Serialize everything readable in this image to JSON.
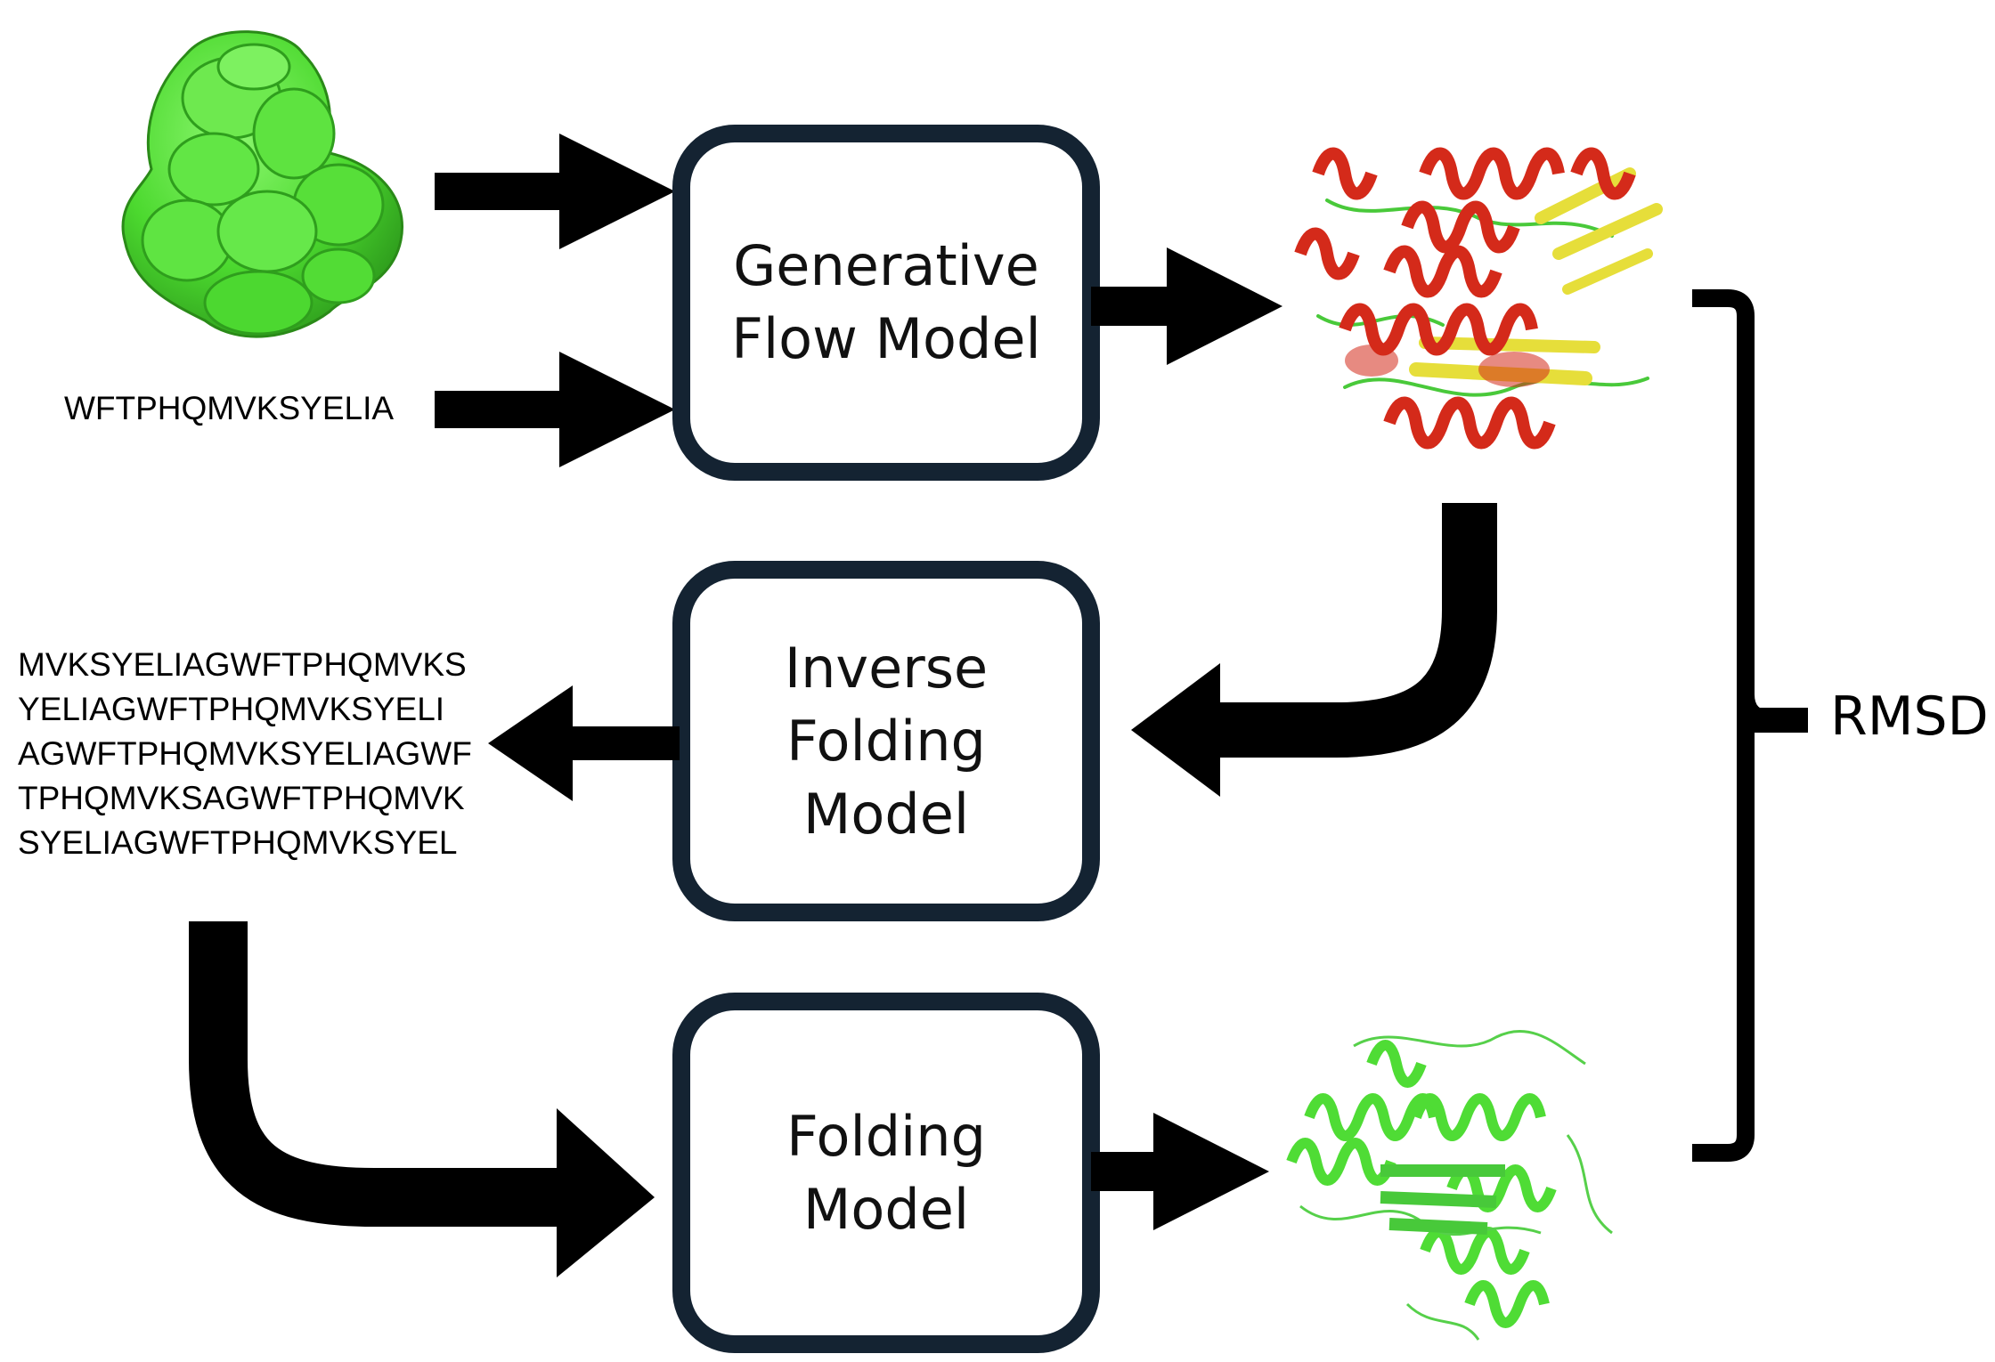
{
  "input_sequence": "WFTPHQMVKSYELIA",
  "boxes": {
    "generative": {
      "label": "Generative\nFlow Model"
    },
    "inverse": {
      "label": "Inverse\nFolding\nModel"
    },
    "folding": {
      "label": "Folding\nModel"
    }
  },
  "designed_sequence": {
    "lines": [
      "MVKSYELIAGWFTPHQMVKS",
      "YELIAGWFTPHQMVKSYELI",
      "AGWFTPHQMVKSYELIAGWF",
      "TPHQMVKSAGWFTPHQMVK",
      "SYELIAGWFTPHQMVKSYEL"
    ]
  },
  "rmsd_label": "RMSD",
  "colors": {
    "box_border": "#142332",
    "arrow": "#000000",
    "binder_surface": "#55e03a",
    "helix_red": "#d42a1a",
    "strand_yellow": "#e6de3a",
    "predicted_green": "#4fdc35"
  },
  "icons": {
    "target_surface": "protein-surface-icon",
    "generated_structure": "protein-ribbon-icon",
    "predicted_structure": "protein-ribbon-icon"
  }
}
